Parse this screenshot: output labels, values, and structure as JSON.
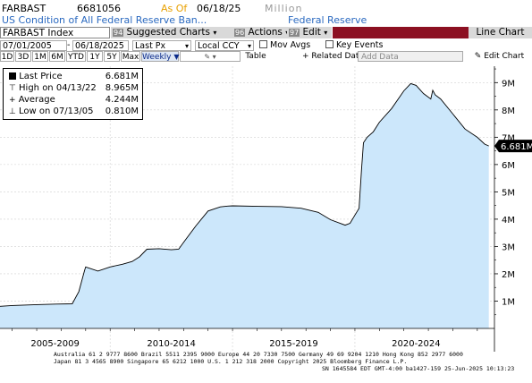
{
  "header": {
    "ticker": "FARBAST",
    "value": "6681056",
    "asof_label": "As Of",
    "asof_date": "06/18/25",
    "units": "Million",
    "description": "US Condition of All Federal Reserve Ban...",
    "source": "Federal Reserve"
  },
  "toolbar": {
    "security": "FARBAST Index",
    "suggested_num": "94",
    "suggested_label": "Suggested Charts",
    "actions_num": "96",
    "actions_label": "Actions",
    "edit_num": "97",
    "edit_label": "Edit",
    "chart_title": "Line Chart"
  },
  "controls": {
    "start_date": "07/01/2005",
    "end_date": "06/18/2025",
    "field": "Last Px",
    "currency": "Local CCY",
    "mov_avgs": "Mov Avgs",
    "key_events": "Key Events"
  },
  "periods": [
    "1D",
    "3D",
    "1M",
    "6M",
    "YTD",
    "1Y",
    "5Y",
    "Max"
  ],
  "frequency": "Weekly",
  "subtoolbar": {
    "table": "Table",
    "related": "Related Dat",
    "add_data": "Add Data",
    "edit_chart": "Edit Chart"
  },
  "legend": {
    "last_label": "Last Price",
    "last_value": "6.681M",
    "high_label": "High on 04/13/22",
    "high_value": "8.965M",
    "avg_label": "Average",
    "avg_value": "4.244M",
    "low_label": "Low on 07/13/05",
    "low_value": "0.810M"
  },
  "chart_data": {
    "type": "area",
    "ylabel": "",
    "ylim": [
      0,
      9.6
    ],
    "yticks": [
      "1M",
      "2M",
      "3M",
      "4M",
      "5M",
      "6M",
      "7M",
      "8M",
      "9M"
    ],
    "ytick_values": [
      1,
      2,
      3,
      4,
      5,
      6,
      7,
      8,
      9
    ],
    "xlabels": [
      "2005-2009",
      "2010-2014",
      "2015-2019",
      "2020-2024"
    ],
    "last_value_label": "6.681M",
    "fill_color": "#cce7fb",
    "line_color": "#000000",
    "series": [
      {
        "x": [
          2005.5,
          2006.0,
          2007.0,
          2007.8,
          2008.45,
          2008.72,
          2008.95,
          2009.0,
          2009.5,
          2010.0,
          2010.5,
          2010.9,
          2011.2,
          2011.5,
          2012.0,
          2012.5,
          2012.8,
          2013.0,
          2013.5,
          2014.0,
          2014.5,
          2014.8,
          2015.0,
          2016.0,
          2017.0,
          2017.8,
          2018.5,
          2019.0,
          2019.6,
          2019.8,
          2020.0,
          2020.17,
          2020.27,
          2020.35,
          2020.5,
          2020.75,
          2021.0,
          2021.5,
          2022.0,
          2022.28,
          2022.5,
          2022.8,
          2023.1,
          2023.18,
          2023.28,
          2023.5,
          2024.0,
          2024.5,
          2025.0,
          2025.3,
          2025.47
        ],
        "y": [
          0.81,
          0.84,
          0.87,
          0.89,
          0.9,
          1.35,
          2.1,
          2.25,
          2.1,
          2.25,
          2.35,
          2.45,
          2.62,
          2.9,
          2.92,
          2.88,
          2.9,
          3.15,
          3.75,
          4.3,
          4.45,
          4.48,
          4.49,
          4.47,
          4.46,
          4.4,
          4.25,
          3.98,
          3.78,
          3.85,
          4.15,
          4.4,
          5.8,
          6.8,
          7.0,
          7.2,
          7.55,
          8.05,
          8.7,
          8.965,
          8.9,
          8.6,
          8.4,
          8.72,
          8.55,
          8.4,
          7.85,
          7.3,
          7.0,
          6.75,
          6.681
        ]
      }
    ]
  }
}
